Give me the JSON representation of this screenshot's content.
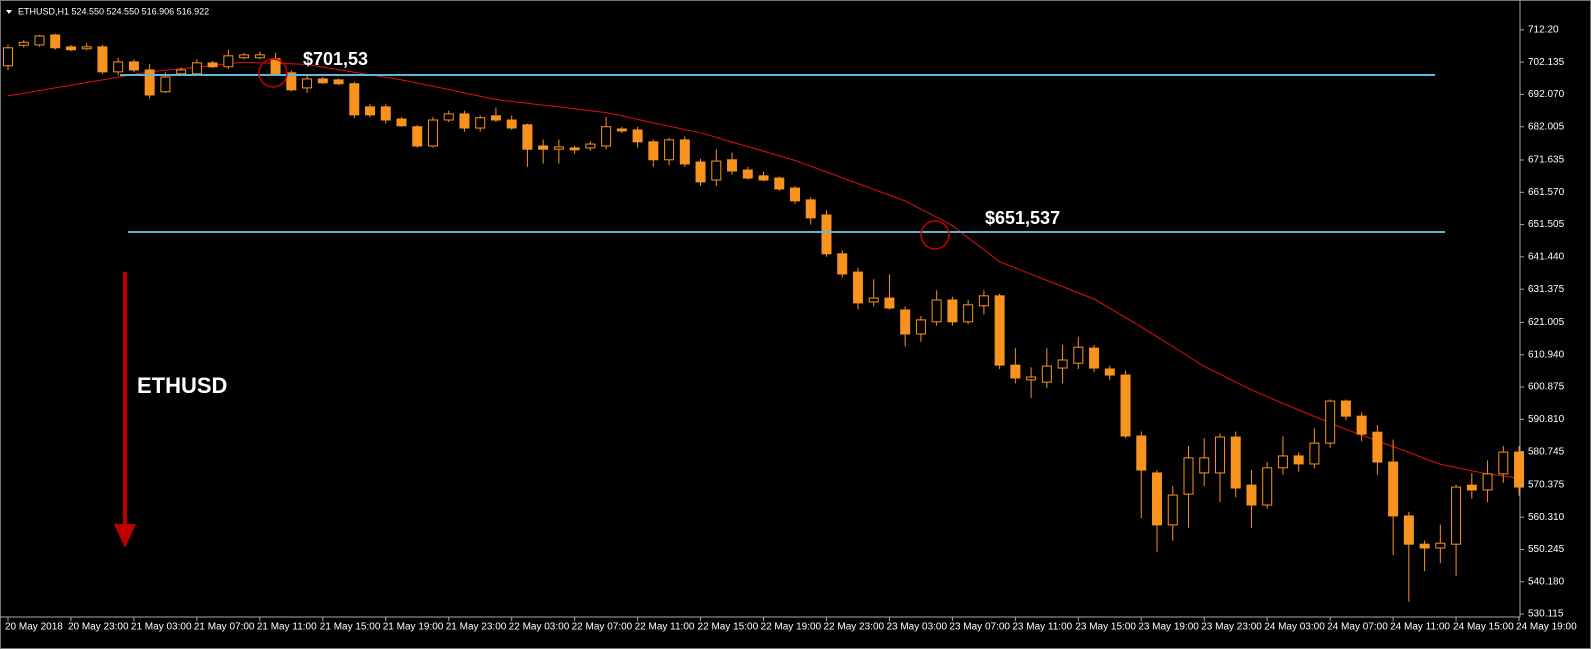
{
  "chart_data": {
    "type": "candlestick",
    "header": "ETHUSD,H1  524.550 524.550 516.906 516.922",
    "annotations": [
      "$701,53",
      "$651,537",
      "ETHUSD"
    ],
    "color": "#f7931e",
    "ma_color": "#e01010",
    "ylim": [
      529.2,
      721.5
    ],
    "yticks": [
      {
        "value": 712.2,
        "label": "712.20"
      },
      702.135,
      {
        "value": 692.07,
        "label": "692.070"
      },
      682.005,
      671.635,
      {
        "value": 661.57,
        "label": "661.570"
      },
      651.505,
      {
        "value": 641.44,
        "label": "641.440"
      },
      631.375,
      621.005,
      {
        "value": 610.94,
        "label": "610.940"
      },
      600.875,
      {
        "value": 590.81,
        "label": "590.810"
      },
      580.745,
      570.375,
      {
        "value": 560.31,
        "label": "560.310"
      },
      550.245,
      {
        "value": 540.18,
        "label": "540.180"
      },
      530.115
    ],
    "categories": [
      "20 May 2018",
      null,
      null,
      null,
      "20 May 23:00",
      null,
      null,
      null,
      "21 May 03:00",
      null,
      null,
      null,
      "21 May 07:00",
      null,
      null,
      null,
      "21 May 11:00",
      null,
      null,
      null,
      "21 May 15:00",
      null,
      null,
      null,
      "21 May 19:00",
      null,
      null,
      null,
      "21 May 23:00",
      null,
      null,
      null,
      "22 May 03:00",
      null,
      null,
      null,
      "22 May 07:00",
      null,
      null,
      null,
      "22 May 11:00",
      null,
      null,
      null,
      "22 May 15:00",
      null,
      null,
      null,
      "22 May 19:00",
      null,
      null,
      null,
      "22 May 23:00",
      null,
      null,
      null,
      "23 May 03:00",
      null,
      null,
      null,
      "23 May 07:00",
      null,
      null,
      null,
      "23 May 11:00",
      null,
      null,
      null,
      "23 May 15:00",
      null,
      null,
      null,
      "23 May 19:00",
      null,
      null,
      null,
      "23 May 23:00",
      null,
      null,
      null,
      "24 May 03:00",
      null,
      null,
      null,
      "24 May 07:00",
      null,
      null,
      null,
      "24 May 11:00",
      null,
      null,
      null,
      "24 May 15:00",
      null,
      null,
      null,
      "24 May 19:00"
    ],
    "open": [
      701.0,
      707.4,
      707.5,
      710.6,
      706.9,
      706.3,
      706.9,
      699.1,
      702.2,
      699.7,
      692.9,
      698.5,
      698.5,
      701.9,
      700.7,
      703.5,
      703.5,
      703.2,
      698.8,
      694.1,
      696.9,
      696.6,
      695.4,
      688.2,
      688.2,
      684.4,
      682.0,
      676.0,
      684.1,
      686.0,
      681.6,
      685.4,
      684.1,
      682.6,
      676.0,
      675.0,
      675.4,
      675.4,
      676.0,
      681.3,
      681.0,
      677.3,
      671.7,
      677.9,
      671.0,
      665.4,
      671.7,
      668.5,
      666.7,
      666.0,
      662.9,
      659.2,
      654.5,
      642.4,
      636.7,
      627.4,
      628.6,
      624.9,
      617.4,
      621.2,
      628.0,
      621.2,
      626.2,
      629.3,
      607.7,
      603.1,
      602.4,
      606.8,
      608.3,
      613.0,
      606.5,
      604.6,
      585.6,
      574.1,
      557.9,
      567.5,
      574.1,
      574.1,
      585.3,
      570.3,
      564.1,
      575.7,
      579.4,
      576.9,
      583.4,
      596.5,
      591.8,
      586.8,
      577.5,
      560.7,
      551.9,
      550.7,
      551.9,
      570.3,
      568.8,
      573.8,
      580.6
    ],
    "high": [
      707.5,
      709.0,
      710.6,
      711.0,
      707.5,
      708.0,
      707.5,
      703.5,
      703.0,
      701.5,
      699.0,
      700.5,
      703.0,
      702.5,
      706.0,
      705.0,
      705.5,
      705.0,
      699.5,
      698.0,
      697.5,
      697.0,
      696.0,
      689.0,
      689.0,
      685.0,
      682.5,
      685.0,
      687.0,
      687.0,
      685.5,
      688.0,
      685.5,
      683.0,
      678.0,
      678.0,
      676.0,
      677.5,
      685.0,
      682.0,
      682.0,
      678.0,
      678.5,
      679.0,
      672.0,
      675.0,
      674.0,
      669.5,
      668.0,
      666.5,
      663.5,
      660.0,
      656.0,
      643.5,
      638.0,
      634.5,
      636.0,
      626.0,
      623.0,
      631.0,
      629.0,
      628.0,
      631.0,
      630.0,
      613.0,
      607.0,
      613.0,
      614.0,
      616.5,
      614.0,
      607.5,
      606.0,
      587.0,
      575.0,
      570.0,
      582.5,
      585.0,
      586.5,
      587.0,
      575.0,
      577.5,
      585.5,
      580.5,
      588.0,
      597.0,
      597.0,
      593.0,
      589.0,
      584.5,
      562.0,
      553.0,
      558.0,
      570.5,
      574.0,
      578.0,
      582.5,
      582.5
    ],
    "low": [
      699.7,
      706.7,
      707.0,
      706.0,
      705.5,
      705.8,
      698.5,
      698.0,
      699.0,
      690.8,
      692.5,
      698.0,
      698.0,
      700.3,
      700.0,
      703.0,
      703.0,
      698.0,
      693.0,
      692.5,
      695.3,
      695.0,
      684.7,
      685.0,
      683.0,
      682.0,
      675.5,
      675.5,
      683.5,
      680.5,
      680.5,
      683.5,
      681.0,
      669.5,
      670.5,
      670.5,
      673.5,
      674.5,
      675.0,
      680.0,
      675.5,
      669.5,
      670.0,
      669.5,
      663.5,
      663.5,
      667.0,
      665.5,
      665.0,
      662.0,
      658.0,
      651.5,
      641.5,
      635.0,
      625.0,
      626.0,
      625.0,
      613.5,
      615.0,
      620.0,
      620.0,
      620.5,
      623.5,
      606.5,
      602.0,
      597.5,
      600.5,
      602.0,
      606.5,
      605.5,
      603.0,
      585.0,
      560.0,
      549.5,
      553.0,
      557.0,
      570.0,
      565.0,
      566.5,
      557.0,
      563.0,
      573.5,
      574.5,
      575.5,
      582.0,
      590.5,
      584.0,
      573.5,
      548.5,
      534.0,
      543.5,
      546.0,
      542.0,
      566.0,
      565.0,
      571.0,
      567.0
    ],
    "close": [
      706.6,
      708.3,
      710.3,
      706.6,
      706.0,
      706.9,
      699.1,
      702.2,
      699.7,
      691.9,
      697.5,
      699.7,
      701.9,
      700.7,
      704.1,
      704.4,
      704.4,
      698.5,
      693.5,
      696.9,
      695.7,
      695.4,
      685.7,
      685.7,
      684.1,
      682.3,
      676.0,
      684.1,
      686.0,
      681.6,
      684.8,
      684.1,
      681.6,
      675.0,
      675.0,
      675.7,
      674.8,
      676.6,
      682.0,
      680.7,
      677.3,
      671.7,
      677.9,
      670.4,
      664.8,
      671.3,
      668.2,
      666.0,
      665.4,
      662.6,
      658.9,
      653.6,
      642.4,
      636.1,
      627.1,
      628.6,
      625.5,
      617.4,
      621.8,
      628.0,
      621.2,
      626.5,
      629.3,
      607.7,
      603.7,
      604.0,
      607.4,
      609.3,
      613.3,
      606.8,
      604.6,
      585.6,
      575.0,
      557.9,
      567.2,
      578.8,
      578.8,
      585.3,
      569.4,
      564.1,
      575.7,
      579.4,
      576.9,
      583.4,
      596.5,
      591.8,
      586.2,
      577.5,
      560.7,
      551.9,
      550.7,
      552.2,
      569.7,
      568.8,
      573.8,
      580.6,
      569.7
    ],
    "moving_average": [
      691.6,
      692.4,
      693.3,
      694.1,
      694.9,
      695.8,
      696.6,
      697.4,
      698.3,
      699.1,
      699.6,
      700.1,
      700.6,
      701.1,
      701.6,
      702.1,
      701.9,
      701.8,
      701.6,
      701.4,
      700.6,
      699.8,
      699.0,
      698.2,
      697.4,
      696.6,
      695.6,
      694.6,
      693.6,
      692.5,
      691.5,
      690.5,
      689.9,
      689.3,
      688.7,
      688.2,
      687.6,
      687.0,
      686.4,
      685.4,
      684.3,
      683.2,
      682.2,
      681.1,
      680.1,
      678.7,
      677.2,
      675.8,
      674.4,
      672.9,
      671.5,
      669.7,
      667.9,
      666.1,
      664.3,
      662.5,
      660.7,
      658.9,
      656.3,
      653.8,
      651.2,
      647.4,
      643.7,
      639.9,
      638.0,
      636.0,
      634.1,
      632.2,
      630.2,
      628.3,
      625.4,
      622.5,
      619.6,
      616.5,
      613.5,
      610.4,
      607.3,
      604.9,
      602.4,
      600.0,
      597.9,
      595.8,
      593.7,
      591.7,
      589.7,
      587.7,
      585.9,
      584.1,
      582.3,
      580.5,
      578.6,
      576.8,
      575.8,
      574.8,
      573.8,
      573.1,
      572.5
    ]
  }
}
